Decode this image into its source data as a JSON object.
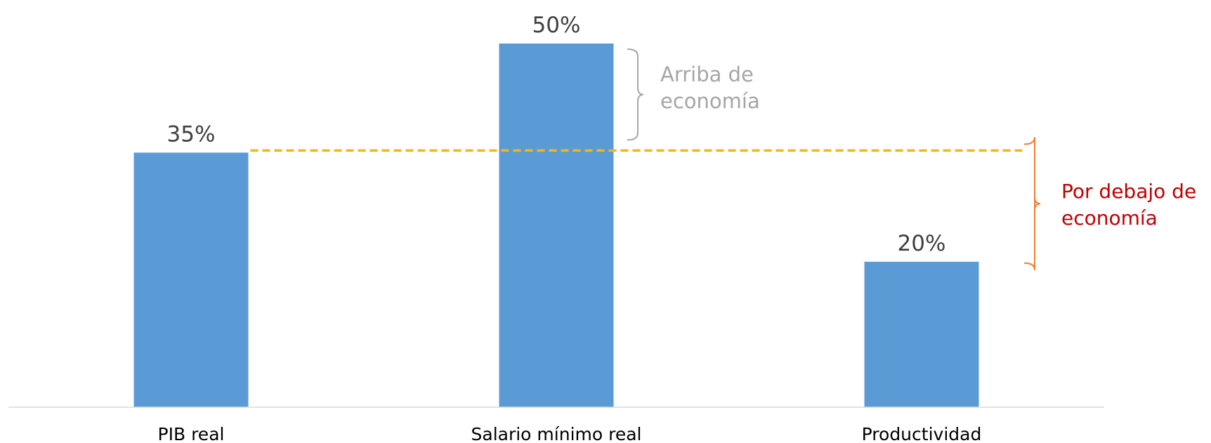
{
  "chart_data": {
    "type": "bar",
    "categories": [
      "PIB real",
      "Salario mínimo real",
      "Productividad"
    ],
    "values": [
      35,
      50,
      20
    ],
    "value_labels": [
      "35%",
      "50%",
      "20%"
    ],
    "title": "",
    "xlabel": "",
    "ylabel": "",
    "ylim": [
      0,
      50
    ],
    "grid": false,
    "legend": "none",
    "reference_line": {
      "value": 35,
      "style": "dashed"
    },
    "annotations": {
      "above": {
        "lines": [
          "Arriba de",
          "economía"
        ],
        "from": 35,
        "to": 50
      },
      "below": {
        "lines": [
          "Por debajo de",
          "economía"
        ],
        "from": 20,
        "to": 35
      }
    }
  },
  "colors": {
    "bar": "#5B9BD5",
    "axis": "#D9D9D9",
    "value_label": "#404040",
    "category_label": "#000000",
    "reference_line": "#F2B619",
    "above_bracket": "#A6A6A6",
    "above_text": "#A6A6A6",
    "below_bracket": "#ED7D31",
    "below_text": "#C00000"
  }
}
